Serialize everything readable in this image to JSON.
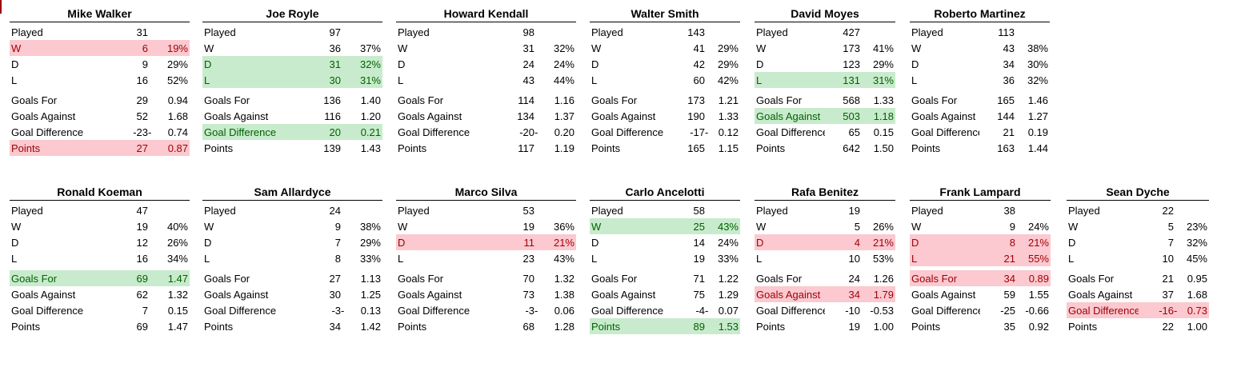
{
  "colors": {
    "highlight_red_fill": "#FBC9CF",
    "highlight_red_text": "#9C0006",
    "highlight_green_fill": "#C9EBCD",
    "highlight_green_text": "#006100",
    "header_rule": "#000000"
  },
  "rows": [
    {
      "panels": [
        {
          "name": "Mike Walker",
          "stats": [
            {
              "label": "Played",
              "value": "31",
              "rate": ""
            },
            {
              "label": "W",
              "value": "6",
              "rate": "19%",
              "hl": "red"
            },
            {
              "label": "D",
              "value": "9",
              "rate": "29%"
            },
            {
              "label": "L",
              "value": "16",
              "rate": "52%"
            },
            {
              "label": "Goals For",
              "value": "29",
              "rate": "0.94"
            },
            {
              "label": "Goals Against",
              "value": "52",
              "rate": "1.68"
            },
            {
              "label": "Goal Difference",
              "value": "-23",
              "rate": "0.74",
              "dash": true
            },
            {
              "label": "Points",
              "value": "27",
              "rate": "0.87",
              "hl": "red"
            }
          ]
        },
        {
          "name": "Joe Royle",
          "stats": [
            {
              "label": "Played",
              "value": "97",
              "rate": ""
            },
            {
              "label": "W",
              "value": "36",
              "rate": "37%"
            },
            {
              "label": "D",
              "value": "31",
              "rate": "32%",
              "hl": "green"
            },
            {
              "label": "L",
              "value": "30",
              "rate": "31%",
              "hl": "green"
            },
            {
              "label": "Goals For",
              "value": "136",
              "rate": "1.40"
            },
            {
              "label": "Goals Against",
              "value": "116",
              "rate": "1.20"
            },
            {
              "label": "Goal Difference",
              "value": "20",
              "rate": "0.21",
              "hl": "green"
            },
            {
              "label": "Points",
              "value": "139",
              "rate": "1.43"
            }
          ]
        },
        {
          "name": "Howard Kendall",
          "stats": [
            {
              "label": "Played",
              "value": "98",
              "rate": ""
            },
            {
              "label": "W",
              "value": "31",
              "rate": "32%"
            },
            {
              "label": "D",
              "value": "24",
              "rate": "24%"
            },
            {
              "label": "L",
              "value": "43",
              "rate": "44%"
            },
            {
              "label": "Goals For",
              "value": "114",
              "rate": "1.16"
            },
            {
              "label": "Goals Against",
              "value": "134",
              "rate": "1.37"
            },
            {
              "label": "Goal Difference",
              "value": "-20",
              "rate": "0.20",
              "dash": true
            },
            {
              "label": "Points",
              "value": "117",
              "rate": "1.19"
            }
          ]
        },
        {
          "name": "Walter Smith",
          "stats": [
            {
              "label": "Played",
              "value": "143",
              "rate": ""
            },
            {
              "label": "W",
              "value": "41",
              "rate": "29%"
            },
            {
              "label": "D",
              "value": "42",
              "rate": "29%"
            },
            {
              "label": "L",
              "value": "60",
              "rate": "42%"
            },
            {
              "label": "Goals For",
              "value": "173",
              "rate": "1.21"
            },
            {
              "label": "Goals Against",
              "value": "190",
              "rate": "1.33"
            },
            {
              "label": "Goal Difference",
              "value": "-17",
              "rate": "0.12",
              "dash": true
            },
            {
              "label": "Points",
              "value": "165",
              "rate": "1.15"
            }
          ]
        },
        {
          "name": "David Moyes",
          "stats": [
            {
              "label": "Played",
              "value": "427",
              "rate": ""
            },
            {
              "label": "W",
              "value": "173",
              "rate": "41%"
            },
            {
              "label": "D",
              "value": "123",
              "rate": "29%"
            },
            {
              "label": "L",
              "value": "131",
              "rate": "31%",
              "hl": "green"
            },
            {
              "label": "Goals For",
              "value": "568",
              "rate": "1.33"
            },
            {
              "label": "Goals Against",
              "value": "503",
              "rate": "1.18",
              "hl": "green"
            },
            {
              "label": "Goal Difference",
              "value": "65",
              "rate": "0.15"
            },
            {
              "label": "Points",
              "value": "642",
              "rate": "1.50"
            }
          ]
        },
        {
          "name": "Roberto Martinez",
          "stats": [
            {
              "label": "Played",
              "value": "113",
              "rate": ""
            },
            {
              "label": "W",
              "value": "43",
              "rate": "38%"
            },
            {
              "label": "D",
              "value": "34",
              "rate": "30%"
            },
            {
              "label": "L",
              "value": "36",
              "rate": "32%"
            },
            {
              "label": "Goals For",
              "value": "165",
              "rate": "1.46"
            },
            {
              "label": "Goals Against",
              "value": "144",
              "rate": "1.27"
            },
            {
              "label": "Goal Difference",
              "value": "21",
              "rate": "0.19"
            },
            {
              "label": "Points",
              "value": "163",
              "rate": "1.44"
            }
          ]
        }
      ]
    },
    {
      "panels": [
        {
          "name": "Ronald Koeman",
          "stats": [
            {
              "label": "Played",
              "value": "47",
              "rate": ""
            },
            {
              "label": "W",
              "value": "19",
              "rate": "40%"
            },
            {
              "label": "D",
              "value": "12",
              "rate": "26%"
            },
            {
              "label": "L",
              "value": "16",
              "rate": "34%"
            },
            {
              "label": "Goals For",
              "value": "69",
              "rate": "1.47",
              "hl": "green"
            },
            {
              "label": "Goals Against",
              "value": "62",
              "rate": "1.32"
            },
            {
              "label": "Goal Difference",
              "value": "7",
              "rate": "0.15"
            },
            {
              "label": "Points",
              "value": "69",
              "rate": "1.47"
            }
          ]
        },
        {
          "name": "Sam Allardyce",
          "stats": [
            {
              "label": "Played",
              "value": "24",
              "rate": ""
            },
            {
              "label": "W",
              "value": "9",
              "rate": "38%"
            },
            {
              "label": "D",
              "value": "7",
              "rate": "29%"
            },
            {
              "label": "L",
              "value": "8",
              "rate": "33%"
            },
            {
              "label": "Goals For",
              "value": "27",
              "rate": "1.13"
            },
            {
              "label": "Goals Against",
              "value": "30",
              "rate": "1.25"
            },
            {
              "label": "Goal Difference",
              "value": "-3",
              "rate": "0.13",
              "dash": true
            },
            {
              "label": "Points",
              "value": "34",
              "rate": "1.42"
            }
          ]
        },
        {
          "name": "Marco Silva",
          "stats": [
            {
              "label": "Played",
              "value": "53",
              "rate": ""
            },
            {
              "label": "W",
              "value": "19",
              "rate": "36%"
            },
            {
              "label": "D",
              "value": "11",
              "rate": "21%",
              "hl": "red"
            },
            {
              "label": "L",
              "value": "23",
              "rate": "43%"
            },
            {
              "label": "Goals For",
              "value": "70",
              "rate": "1.32"
            },
            {
              "label": "Goals Against",
              "value": "73",
              "rate": "1.38"
            },
            {
              "label": "Goal Difference",
              "value": "-3",
              "rate": "0.06",
              "dash": true
            },
            {
              "label": "Points",
              "value": "68",
              "rate": "1.28"
            }
          ]
        },
        {
          "name": "Carlo Ancelotti",
          "stats": [
            {
              "label": "Played",
              "value": "58",
              "rate": ""
            },
            {
              "label": "W",
              "value": "25",
              "rate": "43%",
              "hl": "green"
            },
            {
              "label": "D",
              "value": "14",
              "rate": "24%"
            },
            {
              "label": "L",
              "value": "19",
              "rate": "33%"
            },
            {
              "label": "Goals For",
              "value": "71",
              "rate": "1.22"
            },
            {
              "label": "Goals Against",
              "value": "75",
              "rate": "1.29"
            },
            {
              "label": "Goal Difference",
              "value": "-4",
              "rate": "0.07",
              "dash": true
            },
            {
              "label": "Points",
              "value": "89",
              "rate": "1.53",
              "hl": "green"
            }
          ]
        },
        {
          "name": "Rafa Benitez",
          "stats": [
            {
              "label": "Played",
              "value": "19",
              "rate": ""
            },
            {
              "label": "W",
              "value": "5",
              "rate": "26%"
            },
            {
              "label": "D",
              "value": "4",
              "rate": "21%",
              "hl": "red"
            },
            {
              "label": "L",
              "value": "10",
              "rate": "53%"
            },
            {
              "label": "Goals For",
              "value": "24",
              "rate": "1.26"
            },
            {
              "label": "Goals Against",
              "value": "34",
              "rate": "1.79",
              "hl": "red"
            },
            {
              "label": "Goal Difference",
              "value": "-10",
              "rate": "-0.53"
            },
            {
              "label": "Points",
              "value": "19",
              "rate": "1.00"
            }
          ]
        },
        {
          "name": "Frank Lampard",
          "stats": [
            {
              "label": "Played",
              "value": "38",
              "rate": ""
            },
            {
              "label": "W",
              "value": "9",
              "rate": "24%"
            },
            {
              "label": "D",
              "value": "8",
              "rate": "21%",
              "hl": "red"
            },
            {
              "label": "L",
              "value": "21",
              "rate": "55%",
              "hl": "red"
            },
            {
              "label": "Goals For",
              "value": "34",
              "rate": "0.89",
              "hl": "red"
            },
            {
              "label": "Goals Against",
              "value": "59",
              "rate": "1.55"
            },
            {
              "label": "Goal Difference",
              "value": "-25",
              "rate": "-0.66"
            },
            {
              "label": "Points",
              "value": "35",
              "rate": "0.92"
            }
          ]
        },
        {
          "name": "Sean Dyche",
          "stats": [
            {
              "label": "Played",
              "value": "22",
              "rate": ""
            },
            {
              "label": "W",
              "value": "5",
              "rate": "23%"
            },
            {
              "label": "D",
              "value": "7",
              "rate": "32%"
            },
            {
              "label": "L",
              "value": "10",
              "rate": "45%"
            },
            {
              "label": "Goals For",
              "value": "21",
              "rate": "0.95"
            },
            {
              "label": "Goals Against",
              "value": "37",
              "rate": "1.68"
            },
            {
              "label": "Goal Difference",
              "value": "-16",
              "rate": "0.73",
              "dash": true,
              "hl": "red"
            },
            {
              "label": "Points",
              "value": "22",
              "rate": "1.00"
            }
          ]
        }
      ]
    }
  ]
}
